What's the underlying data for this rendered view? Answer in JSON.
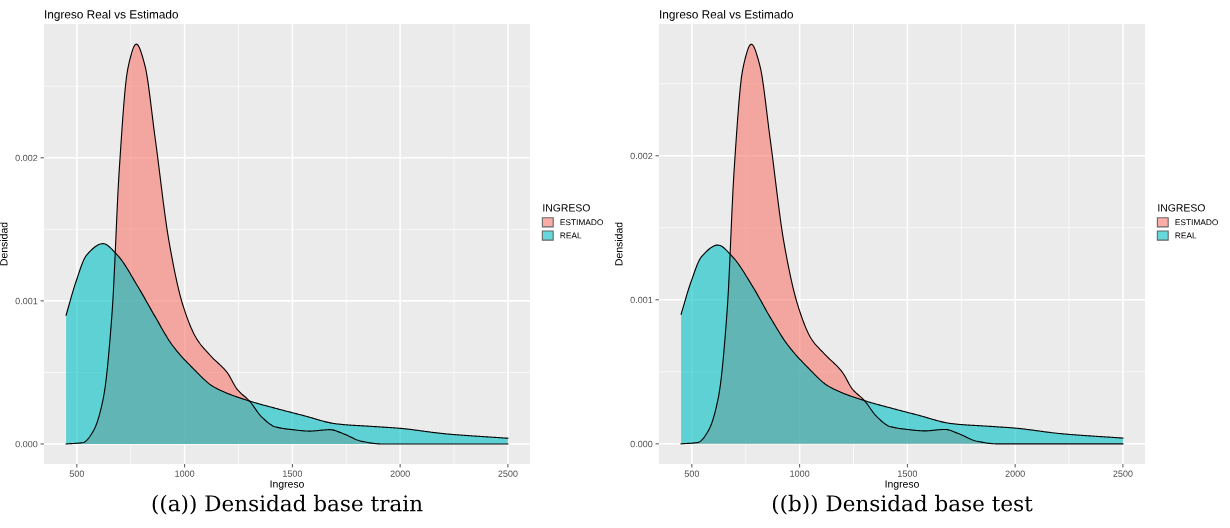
{
  "chart_data": [
    {
      "type": "area",
      "title": "Ingreso Real vs Estimado",
      "xlabel": "Ingreso",
      "ylabel": "Densidad",
      "legend_title": "INGRESO",
      "legend": "right",
      "grid": true,
      "xlim": [
        347.5,
        2602.5
      ],
      "ylim": [
        -0.00014,
        0.002935
      ],
      "xticks": [
        500,
        1000,
        1500,
        2000,
        2500
      ],
      "yticks": [
        {
          "value": 0,
          "label": "0.000"
        },
        {
          "value": 0.001,
          "label": "0.001"
        },
        {
          "value": 0.002,
          "label": "0.002"
        }
      ],
      "annotations": [
        "((a)) Densidad base train"
      ],
      "series": [
        {
          "name": "ESTIMADO",
          "color": "#f8766d",
          "x": [
            450,
            529,
            576,
            624,
            664,
            696,
            736,
            776,
            815,
            863,
            927,
            990,
            1054,
            1118,
            1197,
            1245,
            1301,
            1357,
            1420,
            1500,
            1580,
            1675,
            1739,
            1818,
            1914,
            2500
          ],
          "values": [
            0,
            1e-05,
            9e-05,
            0.00033,
            0.00093,
            0.0019,
            0.00262,
            0.002795,
            0.00265,
            0.00214,
            0.00142,
            0.00098,
            0.00074,
            0.00062,
            0.0005,
            0.00038,
            0.0003,
            0.00019,
            0.00012,
            0.0001,
            9e-05,
            0.0001,
            7e-05,
            2e-05,
            0,
            0
          ]
        },
        {
          "name": "REAL",
          "color": "#00bfc4",
          "x": [
            450,
            495,
            545,
            621,
            688,
            783,
            863,
            943,
            1038,
            1134,
            1301,
            1420,
            1548,
            1707,
            1898,
            1994,
            2217,
            2500
          ],
          "values": [
            0.0009,
            0.00113,
            0.00132,
            0.0014,
            0.00132,
            0.0011,
            0.00089,
            0.00069,
            0.00053,
            0.0004,
            0.0003,
            0.00025,
            0.0002,
            0.00014,
            0.00012,
            0.00011,
            7e-05,
            4e-05
          ]
        }
      ]
    },
    {
      "type": "area",
      "title": "Ingreso Real vs Estimado",
      "xlabel": "Ingreso",
      "ylabel": "Densidad",
      "legend_title": "INGRESO",
      "legend": "right",
      "grid": true,
      "xlim": [
        347.5,
        2602.5
      ],
      "ylim": [
        -0.00014,
        0.002915
      ],
      "xticks": [
        500,
        1000,
        1500,
        2000,
        2500
      ],
      "yticks": [
        {
          "value": 0,
          "label": "0.000"
        },
        {
          "value": 0.001,
          "label": "0.001"
        },
        {
          "value": 0.002,
          "label": "0.002"
        }
      ],
      "annotations": [
        "((b)) Densidad base test"
      ],
      "series": [
        {
          "name": "ESTIMADO",
          "color": "#f8766d",
          "x": [
            450,
            529,
            576,
            624,
            664,
            696,
            736,
            776,
            815,
            863,
            927,
            990,
            1054,
            1118,
            1197,
            1245,
            1301,
            1357,
            1420,
            1500,
            1580,
            1675,
            1739,
            1818,
            1914,
            2500
          ],
          "values": [
            0,
            1e-05,
            9e-05,
            0.00033,
            0.00093,
            0.0019,
            0.0026,
            0.002775,
            0.00263,
            0.00212,
            0.0014,
            0.00097,
            0.00073,
            0.00062,
            0.0005,
            0.00038,
            0.0003,
            0.00019,
            0.00012,
            0.0001,
            9e-05,
            0.0001,
            7e-05,
            2e-05,
            0,
            0
          ]
        },
        {
          "name": "REAL",
          "color": "#00bfc4",
          "x": [
            450,
            495,
            545,
            621,
            688,
            783,
            863,
            943,
            1038,
            1134,
            1301,
            1420,
            1548,
            1707,
            1898,
            1994,
            2217,
            2500
          ],
          "values": [
            0.0009,
            0.00112,
            0.0013,
            0.00138,
            0.0013,
            0.00109,
            0.00088,
            0.00069,
            0.00053,
            0.0004,
            0.0003,
            0.00025,
            0.0002,
            0.00014,
            0.00012,
            0.00011,
            7e-05,
            4e-05
          ]
        }
      ]
    }
  ]
}
